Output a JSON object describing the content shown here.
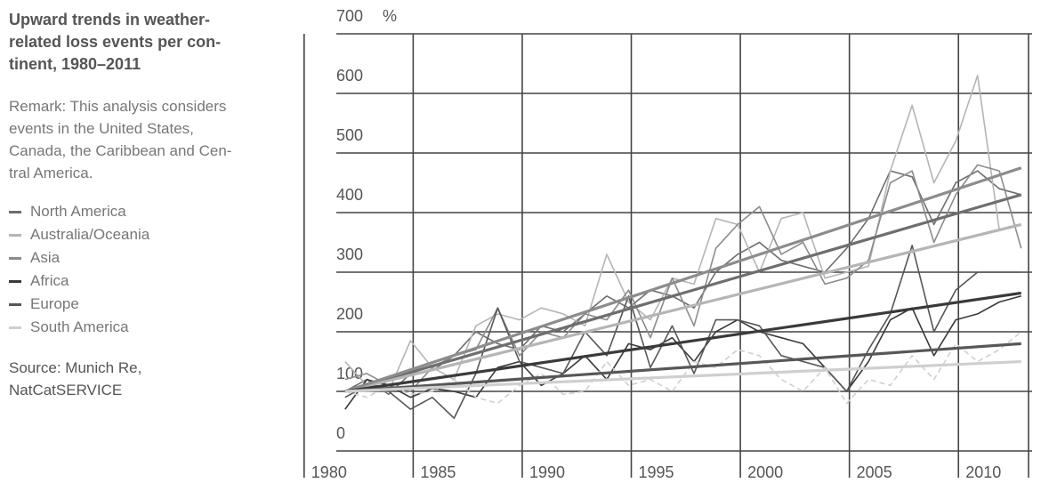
{
  "caption": {
    "title": "Upward trends in weather-\nrelated loss events per con-\ntinent, 1980–2011",
    "remark": "Remark: This analysis considers\nevents in the United States,\nCanada, the Caribbean and Cen-\ntral America.",
    "source": "Source: Munich Re,\nNatCatSERVICE"
  },
  "chart_data": {
    "type": "line",
    "title": "Upward trends in weather-related loss events per continent, 1980–2011",
    "ylabel": "%",
    "unit_label": "%",
    "xlim": [
      1979.6,
      2011.5
    ],
    "ylim": [
      0,
      700
    ],
    "x_ticks": [
      1980,
      1985,
      1990,
      1995,
      2000,
      2005,
      2010
    ],
    "y_ticks": [
      0,
      100,
      200,
      300,
      400,
      500,
      600,
      700
    ],
    "grid": true,
    "legend": "left",
    "x": [
      1980,
      1981,
      1982,
      1983,
      1984,
      1985,
      1986,
      1987,
      1988,
      1989,
      1990,
      1991,
      1992,
      1993,
      1994,
      1995,
      1996,
      1997,
      1998,
      1999,
      2000,
      2001,
      2002,
      2003,
      2004,
      2005,
      2006,
      2007,
      2008,
      2009,
      2010,
      2011
    ],
    "series": [
      {
        "name": "North America",
        "color": "#6e6e6e",
        "dashed": false,
        "values": [
          100,
          120,
          95,
          130,
          135,
          160,
          200,
          180,
          170,
          210,
          200,
          230,
          260,
          240,
          270,
          260,
          240,
          300,
          330,
          350,
          320,
          310,
          300,
          340,
          390,
          470,
          460,
          380,
          450,
          470,
          440,
          430
        ],
        "trend": [
          100,
          430
        ]
      },
      {
        "name": "Australia/Oceania",
        "color": "#b5b5b5",
        "dashed": false,
        "values": [
          150,
          110,
          100,
          185,
          140,
          120,
          210,
          230,
          220,
          240,
          230,
          210,
          330,
          250,
          220,
          290,
          280,
          390,
          380,
          300,
          390,
          400,
          290,
          300,
          310,
          470,
          580,
          450,
          520,
          630,
          370,
          380
        ],
        "trend": [
          100,
          380
        ]
      },
      {
        "name": "Asia",
        "color": "#8c8c8c",
        "dashed": false,
        "values": [
          120,
          130,
          110,
          100,
          140,
          160,
          170,
          240,
          160,
          200,
          190,
          230,
          220,
          270,
          190,
          290,
          210,
          340,
          380,
          410,
          330,
          350,
          280,
          290,
          320,
          450,
          470,
          350,
          430,
          480,
          470,
          340
        ],
        "trend": [
          100,
          475
        ]
      },
      {
        "name": "Africa",
        "color": "#3a3a3a",
        "dashed": false,
        "values": [
          70,
          120,
          110,
          90,
          105,
          100,
          90,
          140,
          150,
          110,
          130,
          160,
          120,
          180,
          170,
          190,
          150,
          200,
          220,
          200,
          190,
          180,
          140,
          100,
          150,
          220,
          240,
          160,
          220,
          230,
          250,
          260
        ],
        "trend": [
          100,
          265
        ]
      },
      {
        "name": "Europe",
        "color": "#575757",
        "dashed": false,
        "values": [
          90,
          110,
          100,
          70,
          90,
          55,
          130,
          240,
          150,
          140,
          130,
          200,
          160,
          260,
          140,
          210,
          130,
          220,
          220,
          210,
          160,
          150,
          140,
          100,
          170,
          230,
          345,
          200,
          270,
          300,
          300,
          300
        ],
        "trend": [
          100,
          180
        ]
      },
      {
        "name": "South America",
        "color": "#cfcfcf",
        "dashed": true,
        "values": [
          100,
          90,
          110,
          95,
          100,
          120,
          90,
          80,
          110,
          130,
          95,
          100,
          150,
          110,
          120,
          100,
          150,
          140,
          170,
          160,
          120,
          100,
          140,
          80,
          120,
          110,
          160,
          120,
          180,
          150,
          170,
          200
        ],
        "trend": [
          100,
          150
        ]
      }
    ]
  }
}
